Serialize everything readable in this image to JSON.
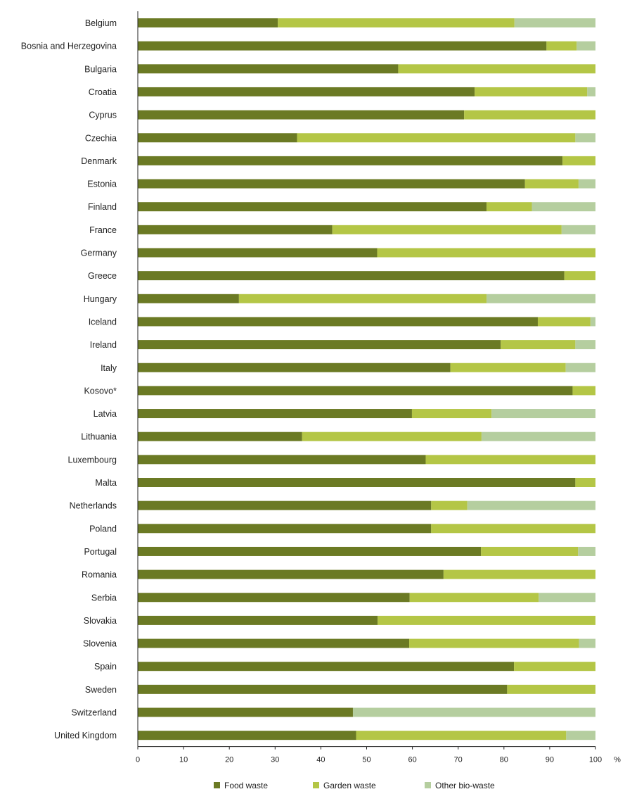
{
  "chart_data": {
    "type": "bar",
    "orientation": "horizontal",
    "stacked": true,
    "title": "",
    "xlabel": "",
    "ylabel": "",
    "unit": "%",
    "xlim": [
      0,
      100
    ],
    "xticks": [
      0,
      10,
      20,
      30,
      40,
      50,
      60,
      70,
      80,
      90,
      100
    ],
    "grid": false,
    "legend_position": "bottom",
    "categories": [
      "Belgium",
      "Bosnia and Herzegovina",
      "Bulgaria",
      "Croatia",
      "Cyprus",
      "Czechia",
      "Denmark",
      "Estonia",
      "Finland",
      "France",
      "Germany",
      "Greece",
      "Hungary",
      "Iceland",
      "Ireland",
      "Italy",
      "Kosovo*",
      "Latvia",
      "Lithuania",
      "Luxembourg",
      "Malta",
      "Netherlands",
      "Poland",
      "Portugal",
      "Romania",
      "Serbia",
      "Slovakia",
      "Slovenia",
      "Spain",
      "Sweden",
      "Switzerland",
      "United Kingdom"
    ],
    "series": [
      {
        "name": "Food waste",
        "color": "#6b7a24",
        "values": [
          30.6,
          89.3,
          56.9,
          73.6,
          71.3,
          34.8,
          92.8,
          84.6,
          76.2,
          42.5,
          52.3,
          93.2,
          22.1,
          87.4,
          79.3,
          68.3,
          95.0,
          59.9,
          35.9,
          62.9,
          95.6,
          64.1,
          64.1,
          75.0,
          66.8,
          59.4,
          52.4,
          59.3,
          82.2,
          80.7,
          47.0,
          47.7
        ]
      },
      {
        "name": "Garden waste",
        "color": "#b4c646",
        "values": [
          51.7,
          6.6,
          43.1,
          24.6,
          28.7,
          60.8,
          7.2,
          11.7,
          9.9,
          50.1,
          47.7,
          6.8,
          54.1,
          11.5,
          16.3,
          25.2,
          5.0,
          17.4,
          39.2,
          37.1,
          4.4,
          7.9,
          35.9,
          21.2,
          33.2,
          28.2,
          47.6,
          37.1,
          17.8,
          19.3,
          0.0,
          45.9
        ]
      },
      {
        "name": "Other bio-waste",
        "color": "#b5ce9f",
        "values": [
          17.7,
          4.1,
          0.0,
          1.8,
          0.0,
          4.4,
          0.0,
          3.7,
          13.9,
          7.4,
          0.0,
          0.0,
          23.8,
          1.1,
          4.4,
          6.5,
          0.0,
          22.7,
          24.9,
          0.0,
          0.0,
          28.0,
          0.0,
          3.8,
          0.0,
          12.4,
          0.0,
          3.6,
          0.0,
          0.0,
          53.0,
          6.4
        ]
      }
    ]
  }
}
